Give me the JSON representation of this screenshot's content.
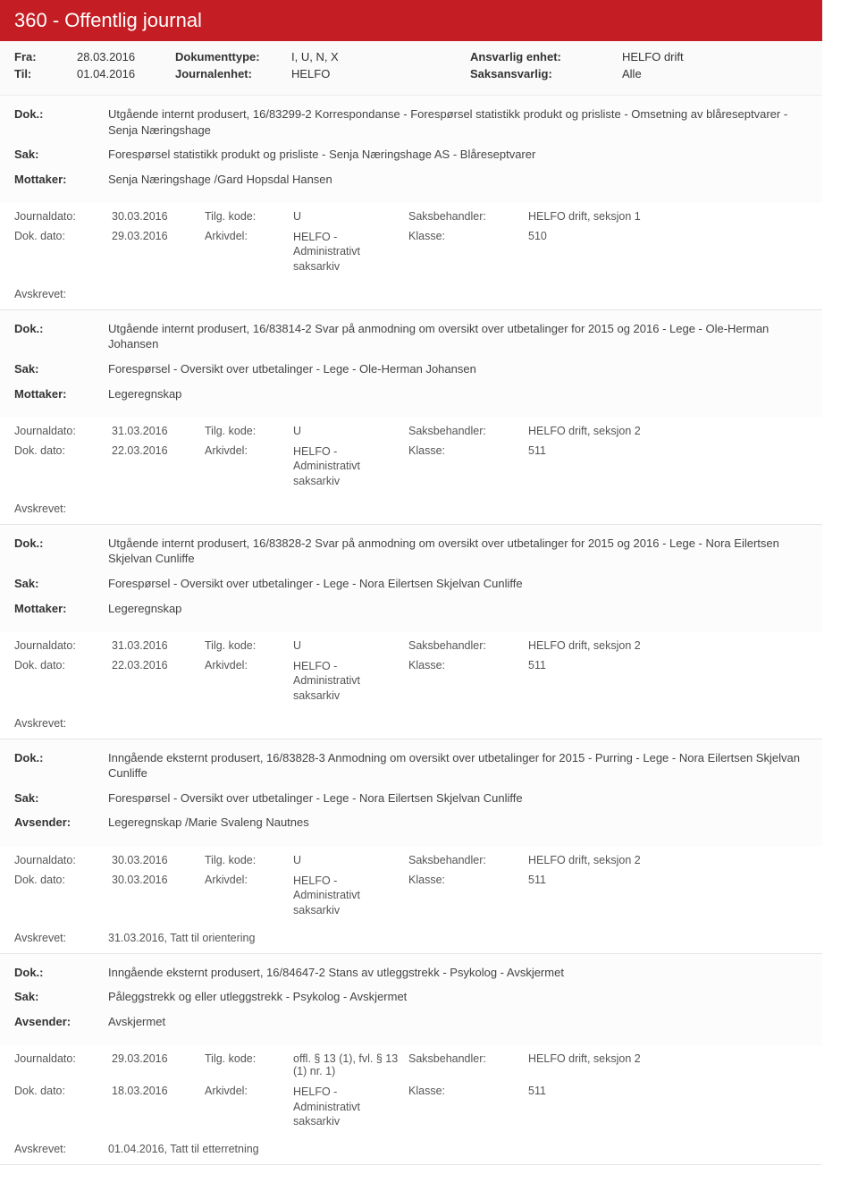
{
  "header": {
    "title": "360 - Offentlig journal"
  },
  "filter": {
    "fra_label": "Fra:",
    "fra": "28.03.2016",
    "til_label": "Til:",
    "til": "01.04.2016",
    "doktype_label": "Dokumenttype:",
    "doktype": "I, U, N, X",
    "jenhet_label": "Journalenhet:",
    "jenhet": "HELFO",
    "ansvenhet_label": "Ansvarlig enhet:",
    "ansvenhet": "HELFO drift",
    "saksansv_label": "Saksansvarlig:",
    "saksansv": "Alle"
  },
  "labels": {
    "dok": "Dok.:",
    "sak": "Sak:",
    "mottaker": "Mottaker:",
    "avsender": "Avsender:",
    "journaldato": "Journaldato:",
    "tilgkode": "Tilg. kode:",
    "saksbeh": "Saksbehandler:",
    "dokdato": "Dok. dato:",
    "arkivdel": "Arkivdel:",
    "klasse": "Klasse:",
    "avskrevet": "Avskrevet:"
  },
  "entries": [
    {
      "dok": "Utgående internt produsert, 16/83299-2 Korrespondanse - Forespørsel statistikk produkt og prisliste - Omsetning av blåreseptvarer - Senja Næringshage",
      "sak": "Forespørsel statistikk produkt og prisliste - Senja Næringshage AS - Blåreseptvarer",
      "party_label": "Mottaker:",
      "party": "Senja Næringshage /Gard Hopsdal Hansen",
      "journaldato": "30.03.2016",
      "tilgkode": "U",
      "saksbeh": "HELFO drift, seksjon 1",
      "dokdato": "29.03.2016",
      "arkivdel": "HELFO - Administrativt saksarkiv",
      "klasse": "510",
      "avskrevet": ""
    },
    {
      "dok": "Utgående internt produsert, 16/83814-2 Svar på anmodning om oversikt over utbetalinger for 2015 og 2016 - Lege - Ole-Herman Johansen",
      "sak": "Forespørsel - Oversikt over utbetalinger - Lege - Ole-Herman Johansen",
      "party_label": "Mottaker:",
      "party": "Legeregnskap",
      "journaldato": "31.03.2016",
      "tilgkode": "U",
      "saksbeh": "HELFO drift, seksjon 2",
      "dokdato": "22.03.2016",
      "arkivdel": "HELFO - Administrativt saksarkiv",
      "klasse": "511",
      "avskrevet": ""
    },
    {
      "dok": "Utgående internt produsert, 16/83828-2 Svar på anmodning om oversikt over utbetalinger for 2015 og 2016 - Lege - Nora Eilertsen Skjelvan Cunliffe",
      "sak": "Forespørsel - Oversikt over utbetalinger - Lege - Nora Eilertsen Skjelvan Cunliffe",
      "party_label": "Mottaker:",
      "party": "Legeregnskap",
      "journaldato": "31.03.2016",
      "tilgkode": "U",
      "saksbeh": "HELFO drift, seksjon 2",
      "dokdato": "22.03.2016",
      "arkivdel": "HELFO - Administrativt saksarkiv",
      "klasse": "511",
      "avskrevet": ""
    },
    {
      "dok": "Inngående eksternt produsert, 16/83828-3 Anmodning om oversikt over utbetalinger for 2015 - Purring -  Lege - Nora Eilertsen Skjelvan Cunliffe",
      "sak": "Forespørsel - Oversikt over utbetalinger - Lege - Nora Eilertsen Skjelvan Cunliffe",
      "party_label": "Avsender:",
      "party": "Legeregnskap /Marie Svaleng Nautnes",
      "journaldato": "30.03.2016",
      "tilgkode": "U",
      "saksbeh": "HELFO drift, seksjon 2",
      "dokdato": "30.03.2016",
      "arkivdel": "HELFO - Administrativt saksarkiv",
      "klasse": "511",
      "avskrevet": "31.03.2016, Tatt til orientering"
    },
    {
      "dok": "Inngående eksternt produsert, 16/84647-2 Stans av utleggstrekk - Psykolog - Avskjermet",
      "sak": "Påleggstrekk og eller utleggstrekk - Psykolog - Avskjermet",
      "party_label": "Avsender:",
      "party": "Avskjermet",
      "journaldato": "29.03.2016",
      "tilgkode": "offl. § 13 (1), fvl. § 13 (1) nr. 1)",
      "saksbeh": "HELFO drift, seksjon 2",
      "dokdato": "18.03.2016",
      "arkivdel": "HELFO - Administrativt saksarkiv",
      "klasse": "511",
      "avskrevet": "01.04.2016, Tatt til etterretning"
    }
  ]
}
